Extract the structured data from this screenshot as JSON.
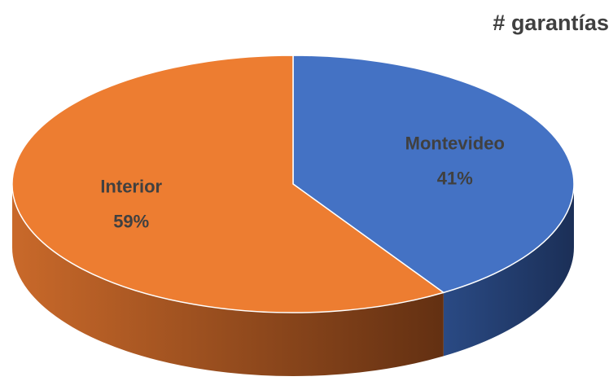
{
  "chart_data": {
    "type": "pie",
    "title": "# garantías",
    "categories": [
      "Montevideo",
      "Interior"
    ],
    "values": [
      41,
      59
    ],
    "value_labels": [
      "41%",
      "59%"
    ],
    "colors": [
      "#4472c4",
      "#ed7d31"
    ]
  }
}
